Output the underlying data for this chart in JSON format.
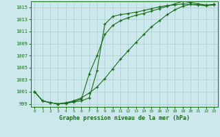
{
  "title": "Graphe pression niveau de la mer (hPa)",
  "bg_color": "#cce8ec",
  "grid_color": "#aacccc",
  "line_color": "#1a6b1a",
  "xlim": [
    -0.5,
    23.5
  ],
  "ylim": [
    998.5,
    1016.0
  ],
  "yticks": [
    999,
    1001,
    1003,
    1005,
    1007,
    1009,
    1011,
    1013,
    1015
  ],
  "xticks": [
    0,
    1,
    2,
    3,
    4,
    5,
    6,
    7,
    8,
    9,
    10,
    11,
    12,
    13,
    14,
    15,
    16,
    17,
    18,
    19,
    20,
    21,
    22,
    23
  ],
  "line1_x": [
    0,
    1,
    2,
    3,
    4,
    5,
    6,
    7,
    8,
    9,
    10,
    11,
    12,
    13,
    14,
    15,
    16,
    17,
    18,
    19,
    20,
    21,
    22,
    23
  ],
  "line1_y": [
    1001.0,
    999.5,
    999.2,
    999.0,
    999.1,
    999.3,
    999.5,
    1000.0,
    1004.5,
    1012.2,
    1013.5,
    1013.8,
    1014.0,
    1014.2,
    1014.5,
    1014.8,
    1015.1,
    1015.3,
    1015.4,
    1015.6,
    1015.5,
    1015.4,
    1015.3,
    1015.4
  ],
  "line2_x": [
    0,
    1,
    2,
    3,
    4,
    5,
    6,
    7,
    8,
    9,
    10,
    11,
    12,
    13,
    14,
    15,
    16,
    17,
    18,
    19,
    20,
    21,
    22,
    23
  ],
  "line2_y": [
    1001.0,
    999.5,
    999.2,
    999.0,
    999.1,
    999.4,
    999.8,
    1004.0,
    1007.0,
    1010.5,
    1012.0,
    1012.8,
    1013.3,
    1013.7,
    1014.0,
    1014.4,
    1014.8,
    1015.2,
    1015.6,
    1016.0,
    1015.8,
    1015.6,
    1015.4,
    1015.5
  ],
  "line3_x": [
    0,
    1,
    2,
    3,
    4,
    5,
    6,
    7,
    8,
    9,
    10,
    11,
    12,
    13,
    14,
    15,
    16,
    17,
    18,
    19,
    20,
    21,
    22,
    23
  ],
  "line3_y": [
    1001.0,
    999.5,
    999.2,
    999.0,
    999.2,
    999.5,
    1000.0,
    1000.8,
    1001.8,
    1003.2,
    1004.8,
    1006.4,
    1007.8,
    1009.2,
    1010.5,
    1011.8,
    1012.8,
    1013.8,
    1014.6,
    1015.2,
    1015.5,
    1015.4,
    1015.3,
    1015.5
  ]
}
